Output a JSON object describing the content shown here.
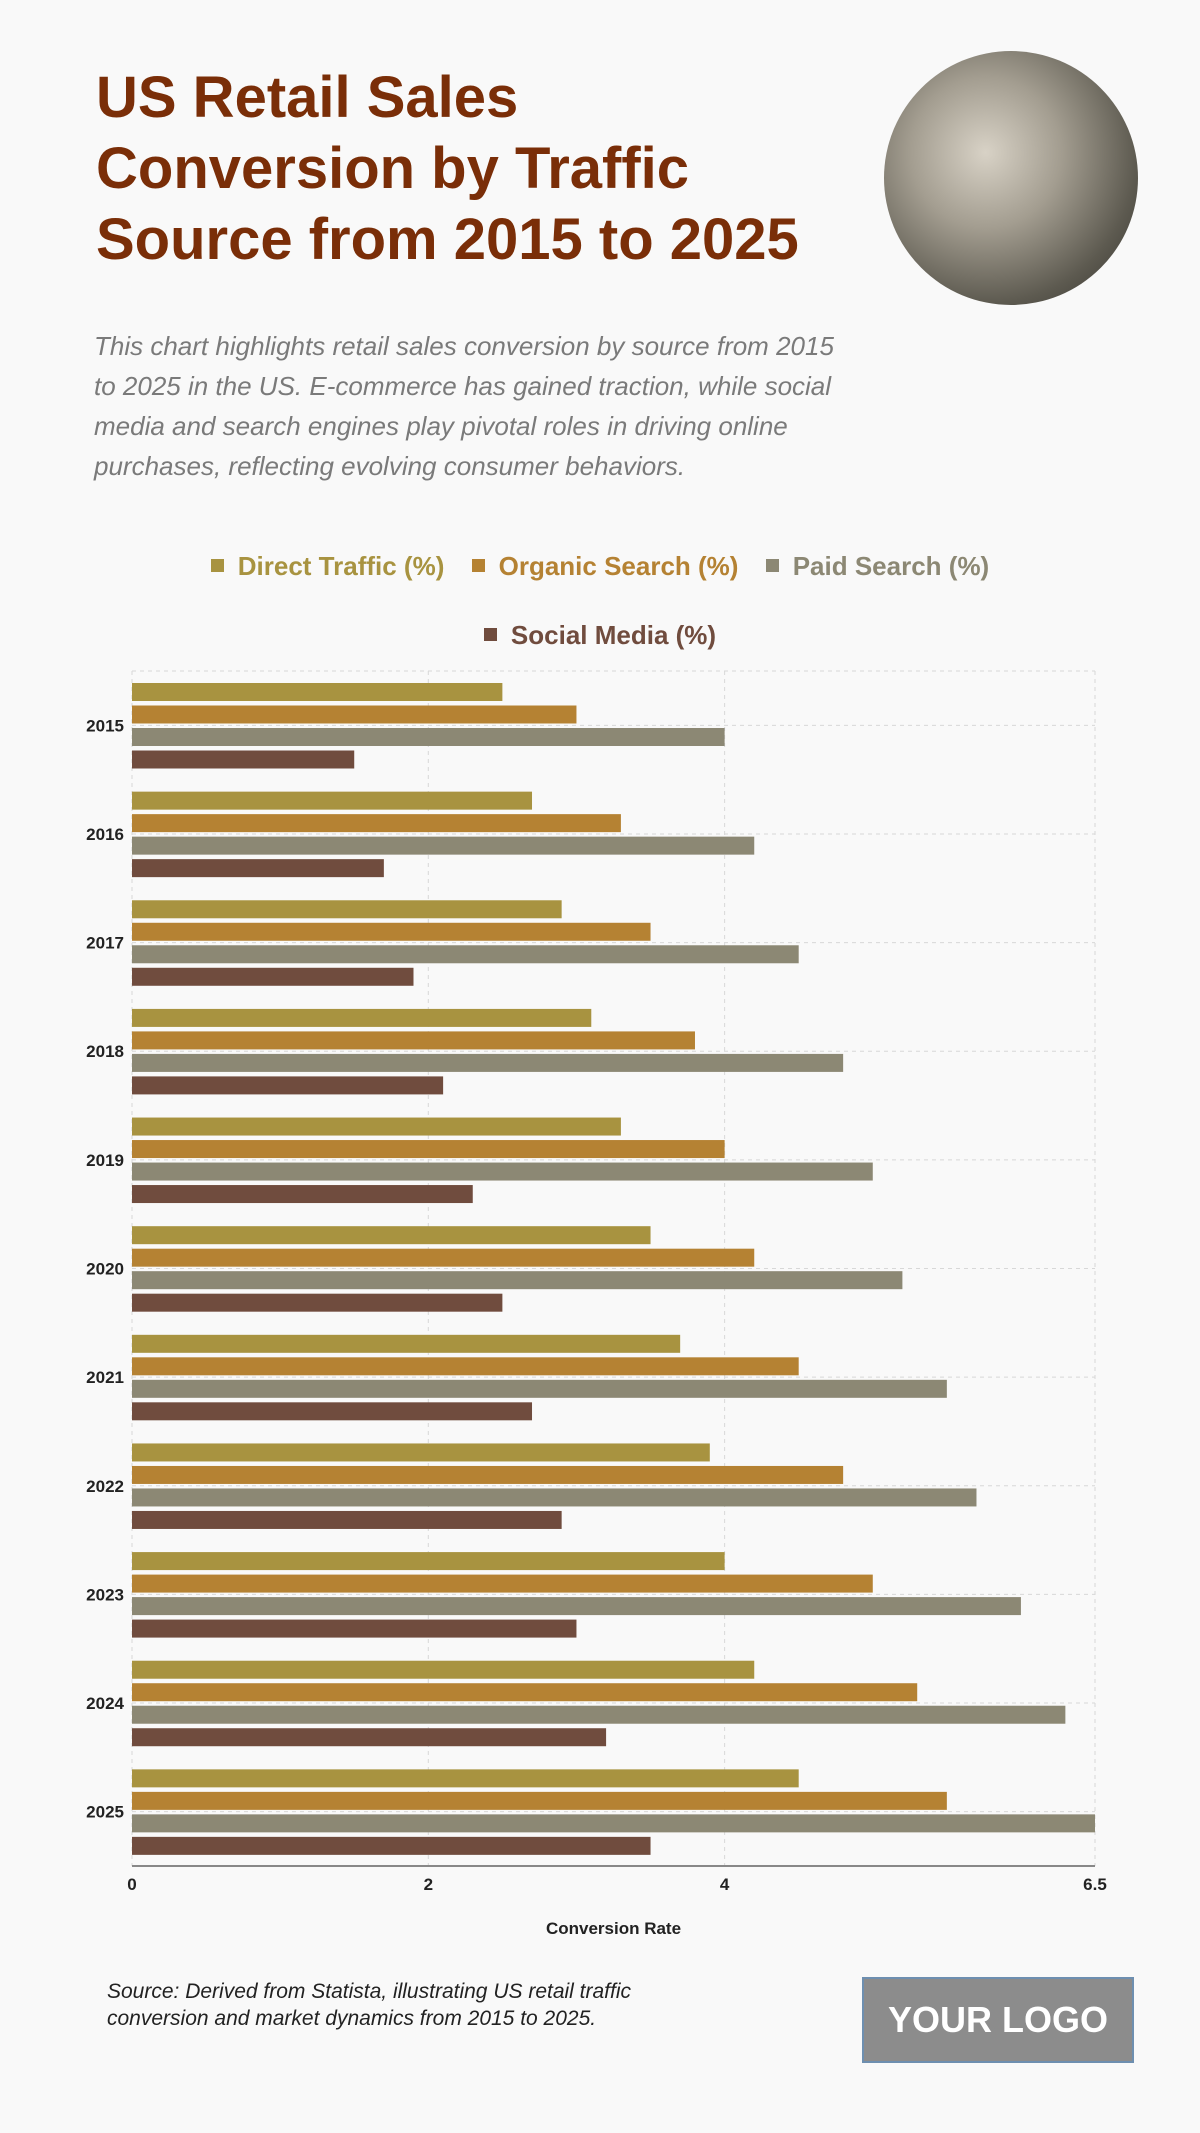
{
  "title_lines": [
    "US Retail Sales",
    "Conversion by Traffic",
    "Source from 2015 to 2025"
  ],
  "description": "This chart highlights retail sales conversion by source from 2015 to 2025 in the US. E-commerce has gained traction, while social media and search engines play pivotal roles in driving online purchases, reflecting evolving consumer behaviors.",
  "source": "Source: Derived from Statista, illustrating US retail traffic conversion and market dynamics from 2015 to 2025.",
  "logo_text": "YOUR LOGO",
  "chart_data": {
    "type": "bar",
    "orientation": "horizontal",
    "categories": [
      "2015",
      "2016",
      "2017",
      "2018",
      "2019",
      "2020",
      "2021",
      "2022",
      "2023",
      "2024",
      "2025"
    ],
    "series": [
      {
        "name": "Direct Traffic (%)",
        "color": "#a89340",
        "values": [
          2.5,
          2.7,
          2.9,
          3.1,
          3.3,
          3.5,
          3.7,
          3.9,
          4.0,
          4.2,
          4.5
        ]
      },
      {
        "name": "Organic Search (%)",
        "color": "#b58233",
        "values": [
          3.0,
          3.3,
          3.5,
          3.8,
          4.0,
          4.2,
          4.5,
          4.8,
          5.0,
          5.3,
          5.5
        ]
      },
      {
        "name": "Paid Search (%)",
        "color": "#8c8874",
        "values": [
          4.0,
          4.2,
          4.5,
          4.8,
          5.0,
          5.2,
          5.5,
          5.7,
          6.0,
          6.3,
          6.5
        ]
      },
      {
        "name": "Social Media (%)",
        "color": "#704c3e",
        "values": [
          1.5,
          1.7,
          1.9,
          2.1,
          2.3,
          2.5,
          2.7,
          2.9,
          3.0,
          3.2,
          3.5
        ]
      }
    ],
    "xlabel": "Conversion Rate",
    "xlim": [
      0,
      6.5
    ],
    "xticks": [
      "0",
      "2",
      "4",
      "6.5"
    ],
    "xtick_values": [
      0,
      2,
      4,
      6.5
    ],
    "grid": true,
    "legend_placement": "top"
  }
}
